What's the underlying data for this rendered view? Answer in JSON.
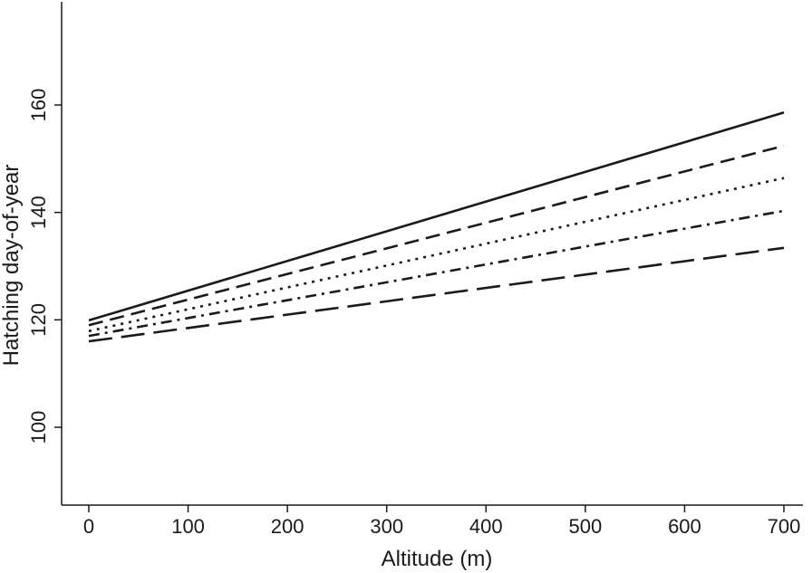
{
  "chart_data": {
    "type": "line",
    "title": "",
    "xlabel": "Altitude (m)",
    "ylabel": "Hatching day-of-year",
    "xlim": [
      -25,
      720
    ],
    "ylim": [
      85,
      181
    ],
    "xticks": [
      0,
      100,
      200,
      300,
      400,
      500,
      600,
      700
    ],
    "yticks": [
      100,
      120,
      140,
      160
    ],
    "grid": false,
    "legend": "none",
    "x": [
      0,
      700
    ],
    "series": [
      {
        "values": [
          119.9,
          158.6
        ],
        "dash": "solid"
      },
      {
        "values": [
          119.0,
          152.4
        ],
        "dash": "long-dash"
      },
      {
        "values": [
          117.9,
          146.4
        ],
        "dash": "dotted"
      },
      {
        "values": [
          117.0,
          140.3
        ],
        "dash": "dash-dot"
      },
      {
        "values": [
          116.0,
          133.4
        ],
        "dash": "long-dash-wide"
      }
    ],
    "line_color": "#1a1a1a"
  }
}
